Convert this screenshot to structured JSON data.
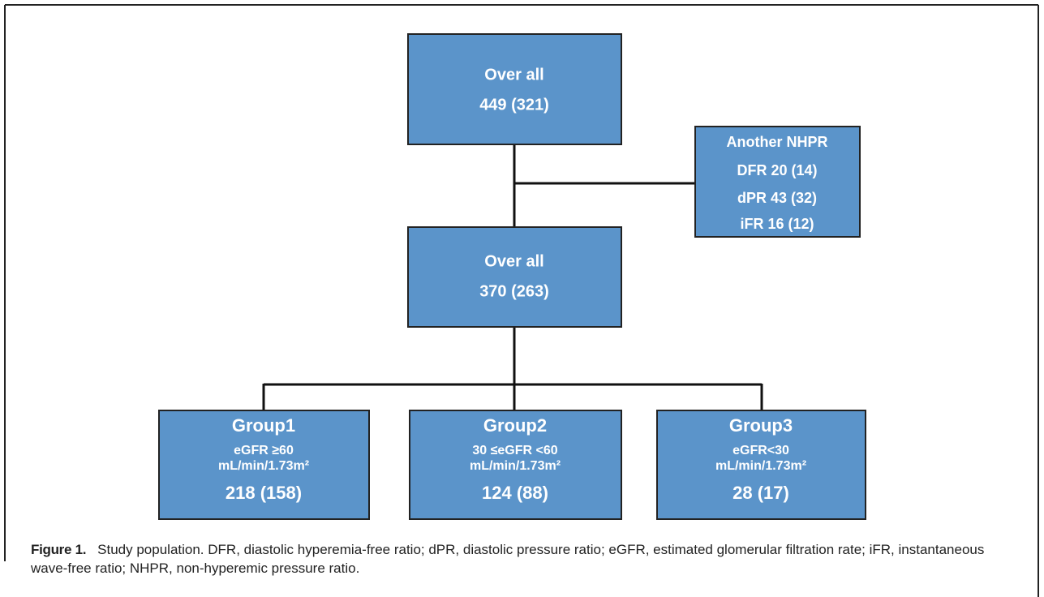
{
  "nodes": [
    {
      "lines": [
        "Over all",
        "449 (321)"
      ]
    },
    {
      "lines": [
        "Another NHPR",
        "DFR 20 (14)",
        "dPR 43 (32)",
        "iFR 16 (12)"
      ]
    },
    {
      "lines": [
        "Over all",
        "370 (263)"
      ]
    },
    {
      "lines": [
        "Group1",
        "eGFR ≥60",
        "mL/min/1.73m²",
        "218 (158)"
      ]
    },
    {
      "lines": [
        "Group2",
        "30 ≤eGFR <60",
        "mL/min/1.73m²",
        "124 (88)"
      ]
    },
    {
      "lines": [
        "Group3",
        "eGFR<30",
        "mL/min/1.73m²",
        "28 (17)"
      ]
    }
  ],
  "caption": {
    "label": "Figure 1.",
    "text": "Study population. DFR, diastolic hyperemia-free ratio; dPR, diastolic pressure ratio; eGFR, estimated glomerular filtration rate; iFR, instantaneous wave-free ratio; NHPR, non-hyperemic pressure ratio."
  }
}
